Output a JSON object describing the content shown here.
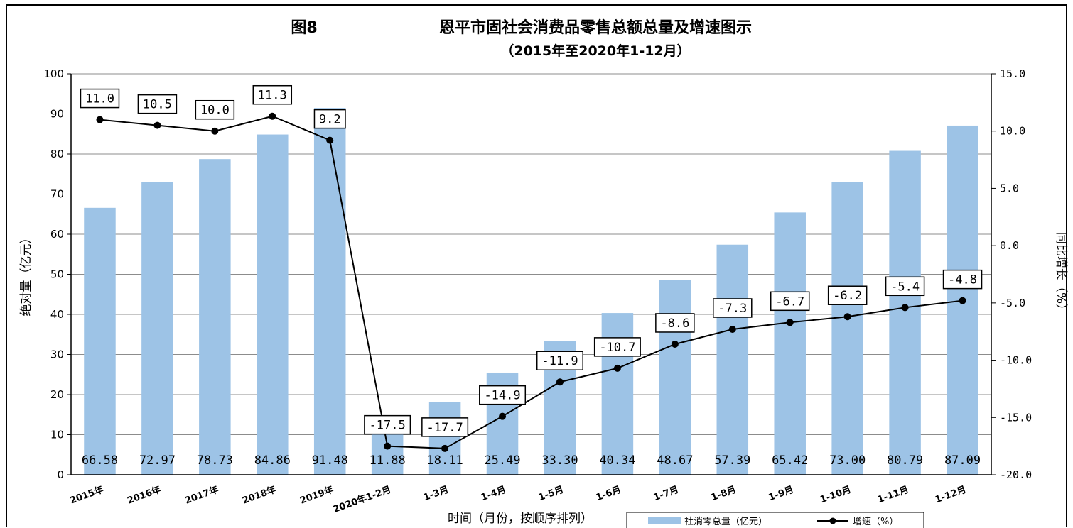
{
  "chart_data": {
    "type": "bar",
    "title_prefix": "图8",
    "title": "恩平市固社会消费品零售总额总量及增速图示",
    "subtitle": "（2015年至2020年1-12月）",
    "xlabel": "时间（月份，按顺序排列）",
    "ylabel": "绝对量（亿元）",
    "ylabel_right": "同比增长（%）",
    "ylim": [
      0,
      100
    ],
    "ylim_right": [
      -20,
      15
    ],
    "yticks": [
      "0",
      "10",
      "20",
      "30",
      "40",
      "50",
      "60",
      "70",
      "80",
      "90",
      "100"
    ],
    "yticks_right": [
      "-20.0",
      "-15.0",
      "-10.0",
      "-5.0",
      "0.0",
      "5.0",
      "10.0",
      "15.0"
    ],
    "categories": [
      "2015年",
      "2016年",
      "2017年",
      "2018年",
      "2019年",
      "2020年1-2月",
      "1-3月",
      "1-4月",
      "1-5月",
      "1-6月",
      "1-7月",
      "1-8月",
      "1-9月",
      "1-10月",
      "1-11月",
      "1-12月"
    ],
    "series": [
      {
        "name": "社消零总量（亿元）",
        "type": "bar",
        "axis": "left",
        "color": "#9dc3e6",
        "values": [
          66.58,
          72.97,
          78.73,
          84.86,
          91.48,
          11.88,
          18.11,
          25.49,
          33.3,
          40.34,
          48.67,
          57.39,
          65.42,
          73.0,
          80.79,
          87.09
        ],
        "labels": [
          "66.58",
          "72.97",
          "78.73",
          "84.86",
          "91.48",
          "11.88",
          "18.11",
          "25.49",
          "33.30",
          "40.34",
          "48.67",
          "57.39",
          "65.42",
          "73.00",
          "80.79",
          "87.09"
        ]
      },
      {
        "name": "增速（%）",
        "type": "line",
        "axis": "right",
        "color": "#000000",
        "values": [
          11.0,
          10.5,
          10.0,
          11.3,
          9.2,
          -17.5,
          -17.7,
          -14.9,
          -11.9,
          -10.7,
          -8.6,
          -7.3,
          -6.7,
          -6.2,
          -5.4,
          -4.8
        ],
        "labels": [
          "11.0",
          "10.5",
          "10.0",
          "11.3",
          "9.2",
          "-17.5",
          "-17.7",
          "-14.9",
          "-11.9",
          "-10.7",
          "-8.6",
          "-7.3",
          "-6.7",
          "-6.2",
          "-5.4",
          "-4.8"
        ]
      }
    ],
    "grid": true,
    "legend": "bottom-right"
  }
}
